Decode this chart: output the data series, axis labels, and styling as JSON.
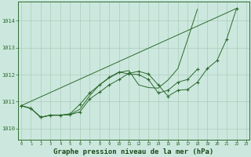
{
  "background_color": "#cce8de",
  "plot_bg_color": "#cce8de",
  "grid_color": "#aaccbb",
  "line_color": "#2d6a2d",
  "marker_color": "#2d6a2d",
  "xlabel": "Graphe pression niveau de la mer (hPa)",
  "xlabel_fontsize": 6.5,
  "xlabel_color": "#1a4a1a",
  "xticks": [
    0,
    1,
    2,
    3,
    4,
    5,
    6,
    7,
    8,
    9,
    10,
    11,
    12,
    13,
    14,
    15,
    16,
    17,
    18,
    19,
    20,
    21,
    22,
    23
  ],
  "yticks": [
    1010,
    1011,
    1012,
    1013,
    1014
  ],
  "ylim": [
    1009.6,
    1014.7
  ],
  "xlim": [
    -0.3,
    23.3
  ],
  "series": [
    {
      "x": [
        0,
        1,
        2,
        3,
        4,
        5,
        6,
        7,
        8,
        9,
        10,
        11,
        12,
        13,
        14,
        15,
        16,
        17,
        18,
        19,
        20,
        21,
        22
      ],
      "y": [
        1010.85,
        1010.75,
        1010.42,
        1010.5,
        1010.5,
        1010.52,
        1010.62,
        1011.1,
        1011.35,
        1011.62,
        1011.82,
        1012.05,
        1012.12,
        1012.02,
        1011.62,
        1011.2,
        1011.42,
        1011.45,
        1011.72,
        1012.22,
        1012.52,
        1013.32,
        1014.45
      ],
      "has_markers": true
    },
    {
      "x": [
        0,
        1,
        2,
        3,
        4,
        5,
        6,
        7,
        8,
        9,
        10,
        11,
        12,
        13,
        14,
        15,
        16,
        17,
        18
      ],
      "y": [
        1010.85,
        1010.75,
        1010.42,
        1010.5,
        1010.5,
        1010.52,
        1010.72,
        1011.22,
        1011.62,
        1011.88,
        1012.08,
        1012.15,
        1011.62,
        1011.52,
        1011.5,
        1011.8,
        1012.22,
        1013.3,
        1014.42
      ],
      "has_markers": false
    },
    {
      "x": [
        0,
        1,
        2,
        3,
        4,
        5,
        6,
        7,
        8,
        9,
        10,
        11,
        12,
        13,
        14,
        15,
        16,
        17,
        18
      ],
      "y": [
        1010.85,
        1010.75,
        1010.42,
        1010.5,
        1010.5,
        1010.55,
        1010.9,
        1011.32,
        1011.62,
        1011.9,
        1012.1,
        1012.02,
        1012.0,
        1011.82,
        1011.32,
        1011.42,
        1011.72,
        1011.82,
        1012.2
      ],
      "has_markers": true
    },
    {
      "x": [
        0,
        22
      ],
      "y": [
        1010.85,
        1014.45
      ],
      "has_markers": false
    }
  ]
}
